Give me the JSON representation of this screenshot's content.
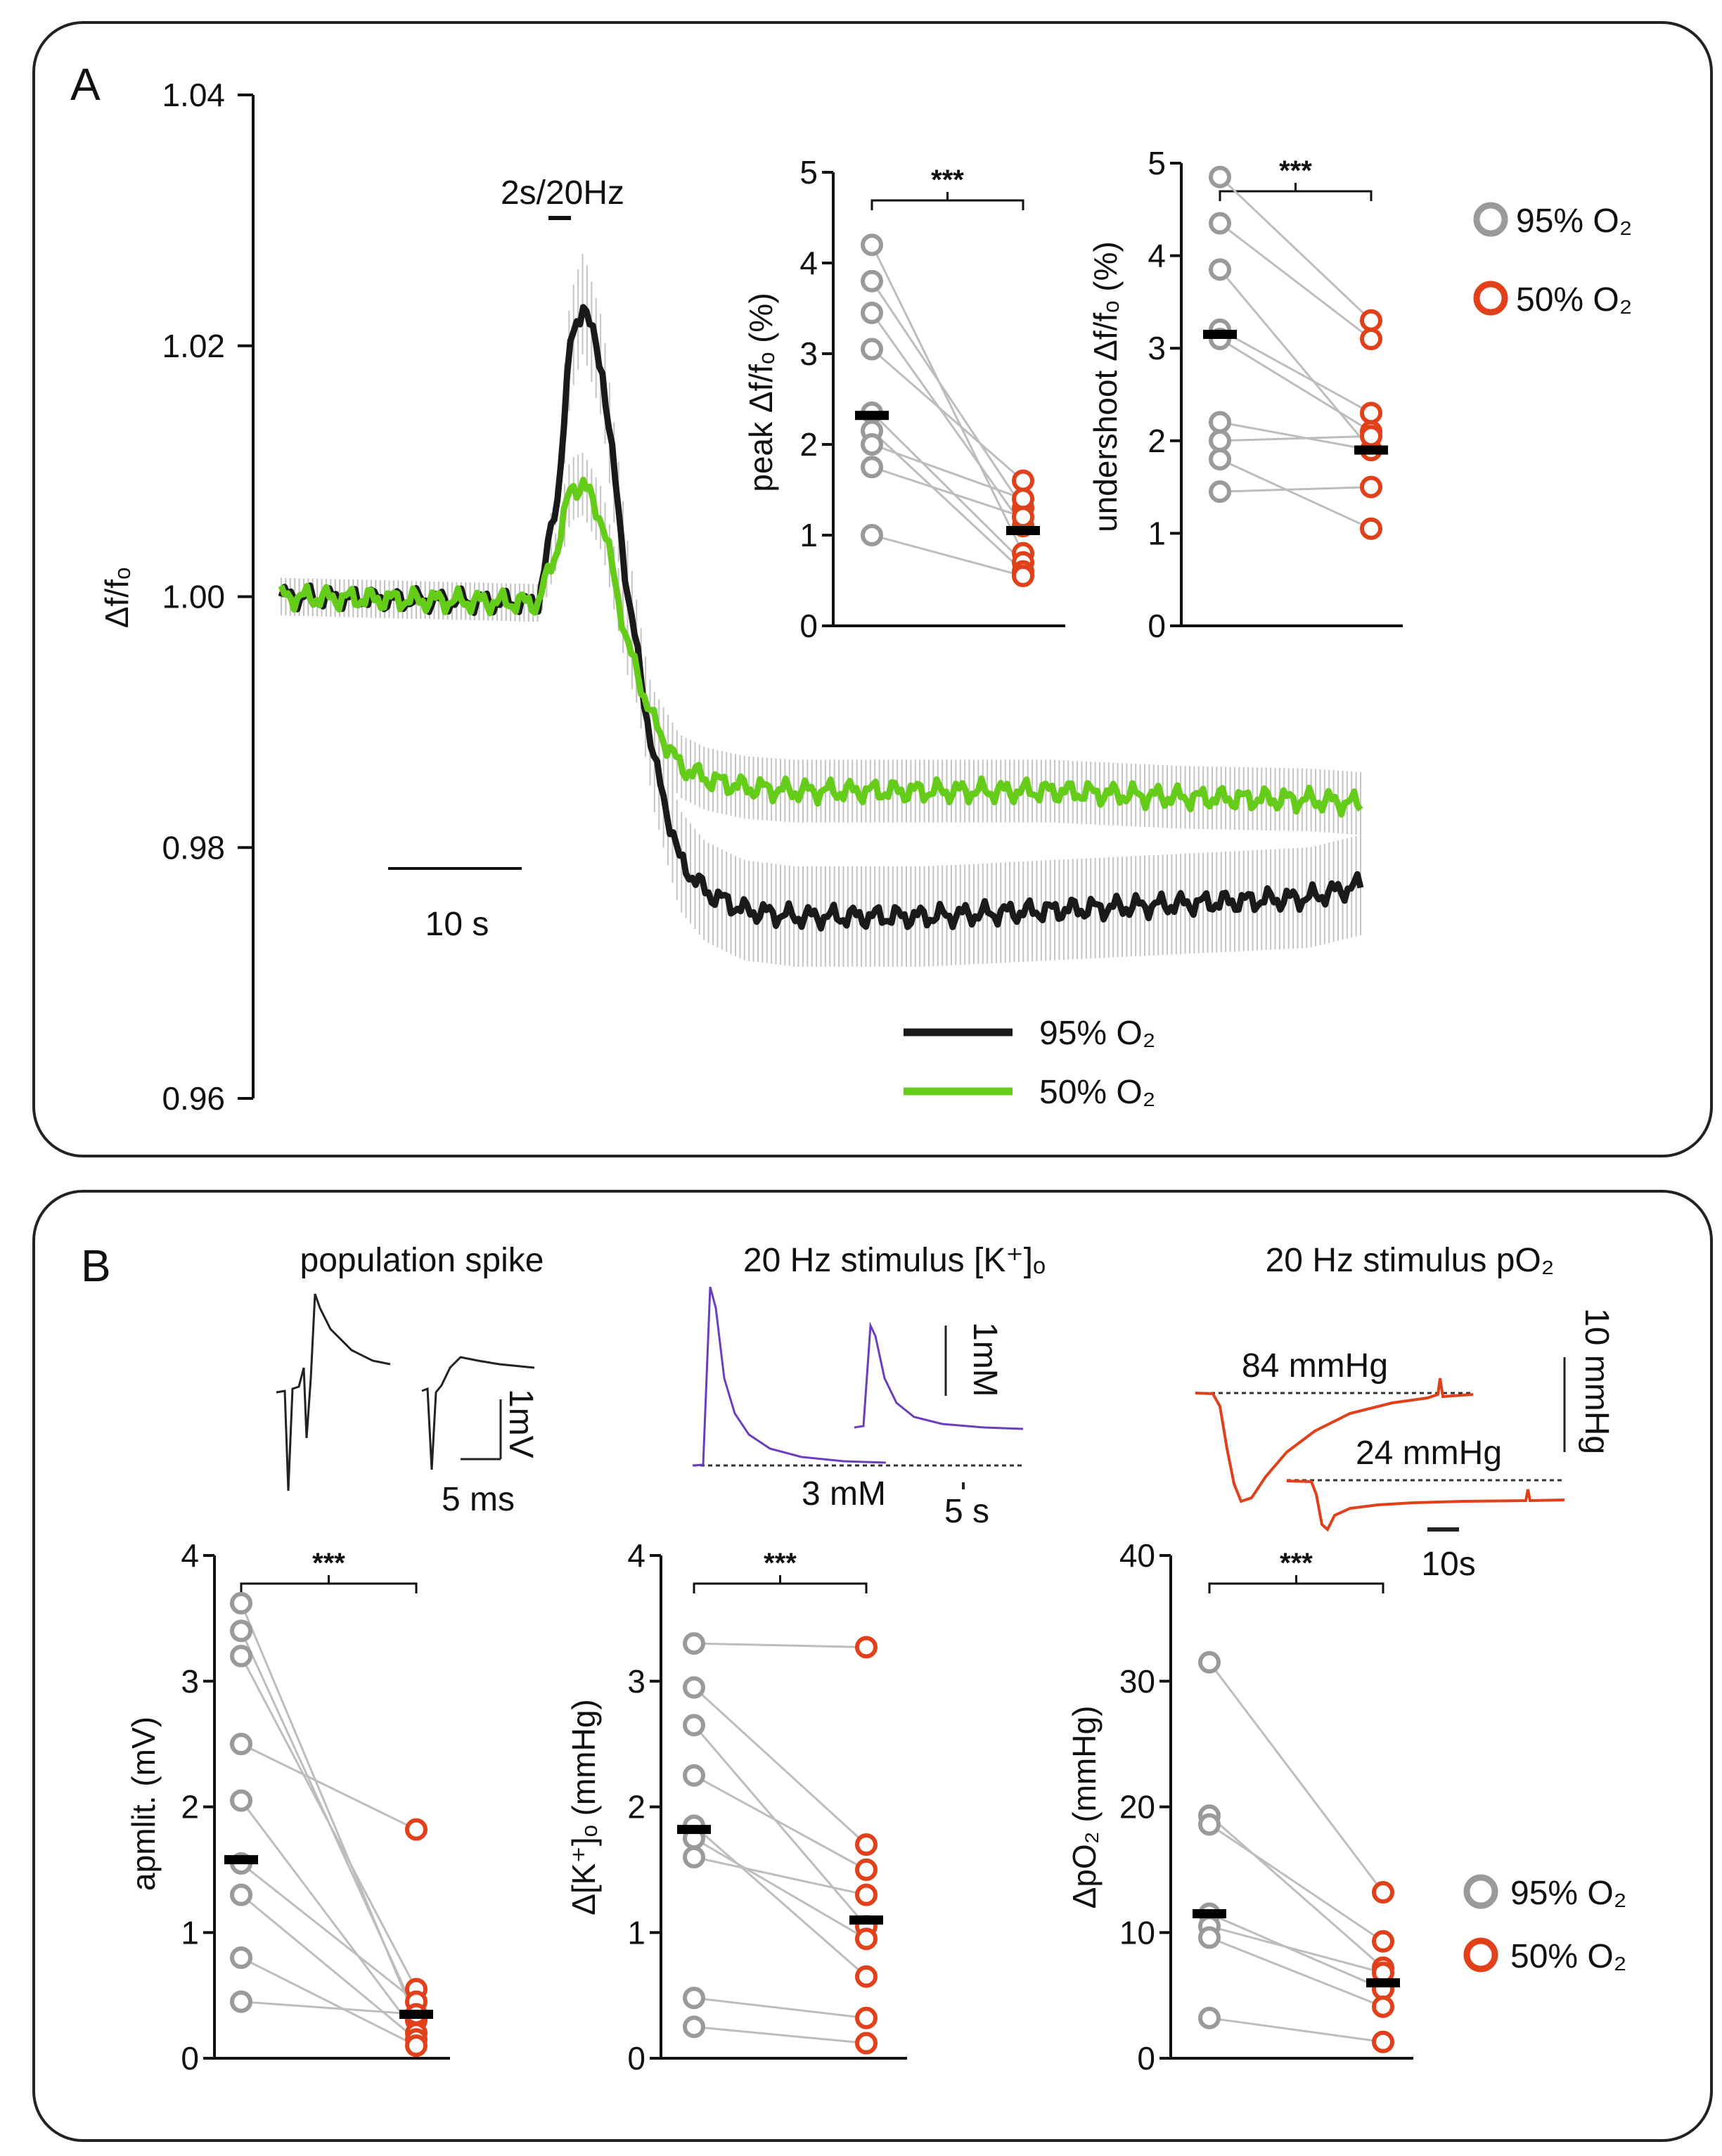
{
  "colors": {
    "o2_95_trace": "#1a1a1a",
    "o2_50_trace": "#66cc1a",
    "marker_95": "#9a9a9a",
    "marker_50": "#e0401a",
    "kplus_trace": "#6a3fbf",
    "po2_trace": "#e0401a",
    "error_bar": "#c4c4c4",
    "paired_line": "#bdbdbd",
    "median_bar": "#000000"
  },
  "panelA": {
    "letter": "A",
    "stim_label": "2s/20Hz",
    "scale_label": "10 s",
    "legend": {
      "o2_95": "95% O₂",
      "o2_50": "50% O₂"
    },
    "chart_data": {
      "type": "line",
      "ylabel": "Δf/fₒ",
      "ylim": [
        0.96,
        1.04
      ],
      "yticks": [
        "0.96",
        "0.98",
        "1.00",
        "1.02",
        "1.04"
      ],
      "x_seconds": [
        0,
        20,
        21.5,
        22.5,
        23.5,
        25,
        27,
        29,
        31,
        33,
        36,
        40,
        50,
        60,
        70,
        80,
        84
      ],
      "series": [
        {
          "name": "95% O₂",
          "values": [
            1.0,
            0.9995,
            1.008,
            1.02,
            1.0235,
            1.018,
            1.0,
            0.987,
            0.979,
            0.9765,
            0.975,
            0.9745,
            0.9745,
            0.975,
            0.9755,
            0.976,
            0.977
          ]
        },
        {
          "name": "50% O₂",
          "values": [
            1.0,
            0.9995,
            1.004,
            1.0085,
            1.009,
            1.006,
            0.996,
            0.99,
            0.9865,
            0.9855,
            0.9848,
            0.9845,
            0.9845,
            0.9845,
            0.984,
            0.9838,
            0.9835
          ]
        }
      ]
    },
    "inset_peak": {
      "ylabel": "peak Δf/fₒ (%)",
      "ylim": [
        0,
        5
      ],
      "yticks": [
        "0",
        "1",
        "2",
        "3",
        "4",
        "5"
      ],
      "significance": "***",
      "chart_data": {
        "type": "scatter",
        "conditions": [
          "95% O₂",
          "50% O₂"
        ],
        "pairs": [
          [
            4.2,
            0.8
          ],
          [
            3.8,
            1.3
          ],
          [
            3.45,
            1.1
          ],
          [
            3.05,
            1.6
          ],
          [
            2.35,
            0.7
          ],
          [
            2.15,
            0.6
          ],
          [
            2.0,
            1.4
          ],
          [
            1.75,
            1.2
          ],
          [
            1.0,
            0.55
          ]
        ],
        "medians": [
          2.32,
          1.05
        ]
      }
    },
    "inset_undershoot": {
      "ylabel": "undershoot Δf/fₒ (%)",
      "ylim": [
        0,
        5
      ],
      "yticks": [
        "0",
        "1",
        "2",
        "3",
        "4",
        "5"
      ],
      "significance": "***",
      "chart_data": {
        "type": "scatter",
        "conditions": [
          "95% O₂",
          "50% O₂"
        ],
        "pairs": [
          [
            4.85,
            3.3
          ],
          [
            4.35,
            3.1
          ],
          [
            3.85,
            1.9
          ],
          [
            3.2,
            2.3
          ],
          [
            3.1,
            2.1
          ],
          [
            2.2,
            1.9
          ],
          [
            2.0,
            2.05
          ],
          [
            1.8,
            1.05
          ],
          [
            1.45,
            1.5
          ]
        ],
        "medians": [
          3.15,
          1.9
        ]
      }
    },
    "legend_markers": {
      "o2_95": "95% O₂",
      "o2_50": "50% O₂"
    }
  },
  "panelB": {
    "letter": "B",
    "titles": {
      "pop_spike": "population spike",
      "kplus": "20 Hz stimulus [K⁺]ₒ",
      "po2": "20 Hz stimulus pO₂"
    },
    "pop_spike_scale": {
      "voltage": "1mV",
      "time": "5 ms"
    },
    "kplus_scale": {
      "baseline": "3 mM",
      "conc": "1mM",
      "time": "5 s"
    },
    "po2_scale": {
      "high": "84 mmHg",
      "low": "24 mmHg",
      "pressure": "10 mmHg",
      "time": "10s"
    },
    "plot_amp": {
      "ylabel": "apmlit. (mV)",
      "ylim": [
        0,
        4
      ],
      "yticks": [
        "0",
        "1",
        "2",
        "3",
        "4"
      ],
      "significance": "***",
      "chart_data": {
        "type": "scatter",
        "conditions": [
          "95% O₂",
          "50% O₂"
        ],
        "pairs": [
          [
            3.62,
            0.3
          ],
          [
            3.4,
            0.35
          ],
          [
            3.2,
            0.55
          ],
          [
            2.5,
            1.82
          ],
          [
            2.05,
            0.2
          ],
          [
            1.55,
            0.45
          ],
          [
            1.3,
            0.15
          ],
          [
            0.8,
            0.1
          ],
          [
            0.45,
            0.35
          ]
        ],
        "medians": [
          1.58,
          0.35
        ]
      }
    },
    "plot_kplus": {
      "ylabel": "Δ[K⁺]ₒ (mmHg)",
      "ylim": [
        0,
        4
      ],
      "yticks": [
        "0",
        "1",
        "2",
        "3",
        "4"
      ],
      "significance": "***",
      "chart_data": {
        "type": "scatter",
        "conditions": [
          "95% O₂",
          "50% O₂"
        ],
        "pairs": [
          [
            3.3,
            3.27
          ],
          [
            2.95,
            1.7
          ],
          [
            2.65,
            1.05
          ],
          [
            2.25,
            1.5
          ],
          [
            1.85,
            0.65
          ],
          [
            1.75,
            0.95
          ],
          [
            1.6,
            1.3
          ],
          [
            0.48,
            0.32
          ],
          [
            0.25,
            0.12
          ]
        ],
        "medians": [
          1.82,
          1.1
        ]
      }
    },
    "plot_po2": {
      "ylabel": "ΔpO₂ (mmHg)",
      "ylim": [
        0,
        40
      ],
      "yticks": [
        "0",
        "10",
        "20",
        "30",
        "40"
      ],
      "significance": "***",
      "chart_data": {
        "type": "scatter",
        "conditions": [
          "95% O₂",
          "50% O₂"
        ],
        "pairs": [
          [
            31.5,
            13.2
          ],
          [
            19.3,
            7.2
          ],
          [
            18.6,
            9.3
          ],
          [
            11.5,
            5.5
          ],
          [
            10.5,
            6.8
          ],
          [
            9.6,
            4.1
          ],
          [
            3.2,
            1.3
          ]
        ],
        "medians": [
          11.5,
          6.0
        ]
      }
    },
    "legend_markers": {
      "o2_95": "95% O₂",
      "o2_50": "50% O₂"
    }
  }
}
